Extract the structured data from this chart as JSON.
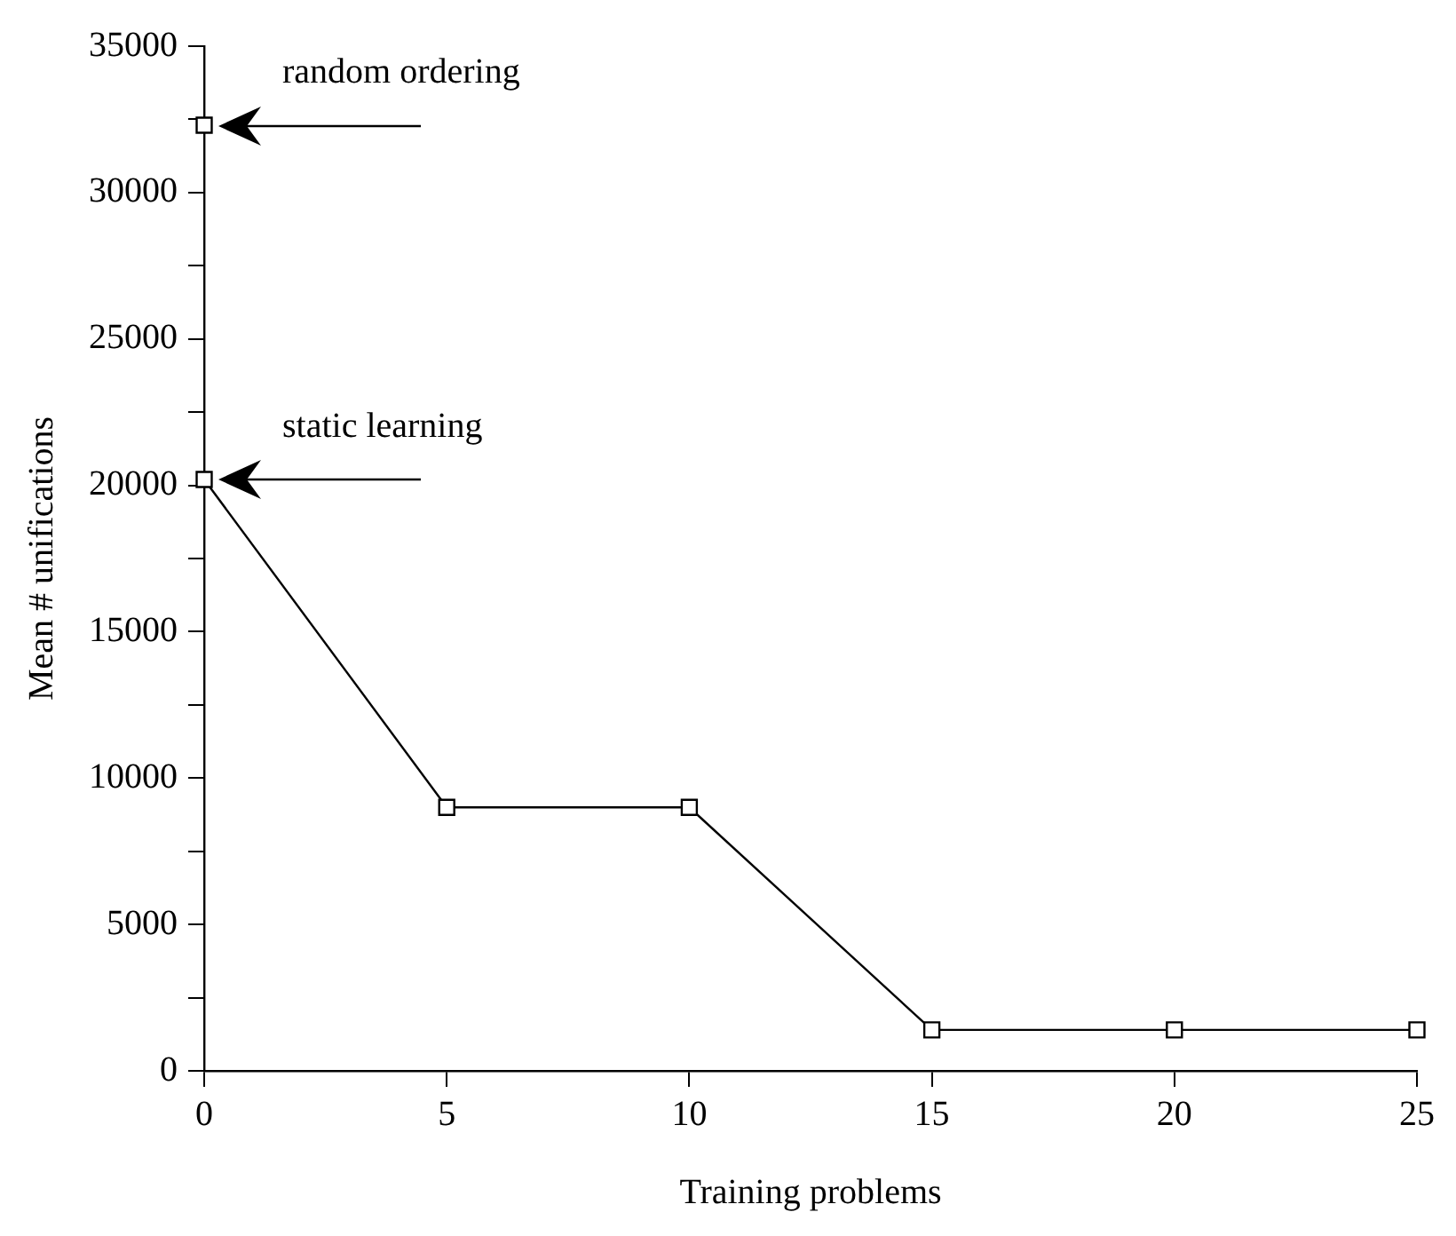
{
  "chart_data": {
    "type": "line",
    "xlabel": "Training problems",
    "ylabel": "Mean # unifications",
    "series": [
      {
        "color": "#000000",
        "x": [
          0,
          5,
          10,
          15,
          20,
          25
        ],
        "values": [
          20200,
          9000,
          9000,
          1400,
          1400,
          1400
        ]
      },
      {
        "type": "scatter",
        "color": "#000000",
        "x": [
          0
        ],
        "values": [
          32300
        ]
      }
    ],
    "xlim": [
      0,
      25
    ],
    "xticks": [
      0,
      5,
      10,
      15,
      20,
      25
    ],
    "ylim": [
      0,
      35000
    ],
    "yticks": [
      0,
      {
        "value": 2500,
        "label": null
      },
      5000,
      {
        "value": 7500,
        "label": null
      },
      10000,
      {
        "value": 12500,
        "label": null
      },
      15000,
      {
        "value": 17500,
        "label": null
      },
      20000,
      {
        "value": 22500,
        "label": null
      },
      25000,
      {
        "value": 27500,
        "label": null
      },
      30000,
      {
        "value": 32500,
        "label": null
      },
      35000
    ],
    "annotations": [
      {
        "text": "random ordering",
        "x": 0,
        "y": 32300
      },
      {
        "text": "static learning",
        "x": 0,
        "y": 20200
      }
    ],
    "grid": false,
    "legend": false,
    "marker": "square",
    "line_style": "solid"
  }
}
